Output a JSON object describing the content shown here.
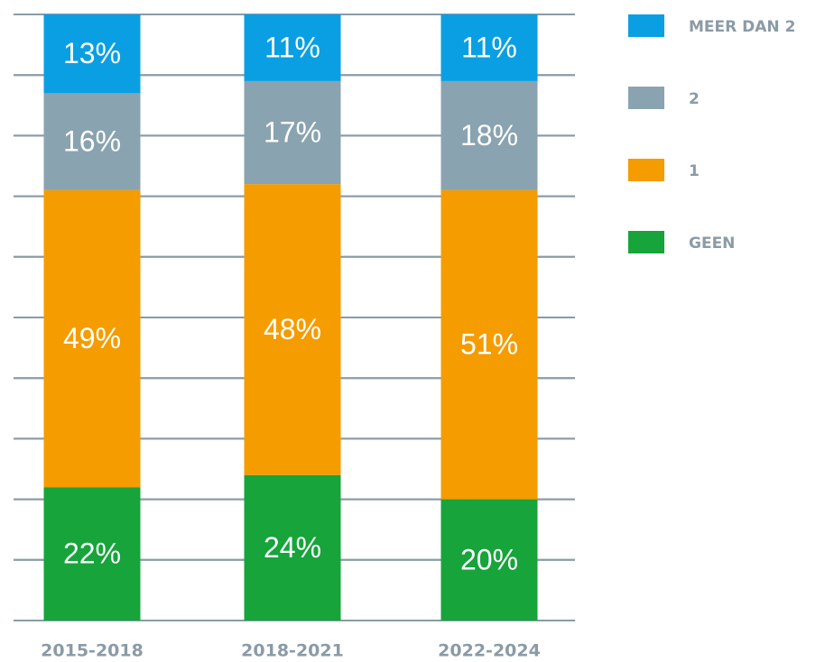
{
  "chart_data": {
    "type": "stacked_bar",
    "categories": [
      "2015-2018",
      "2018-2021",
      "2022-2024"
    ],
    "series": [
      {
        "name": "GEEN",
        "color": "#16a43b",
        "values": [
          22,
          24,
          20
        ],
        "value_labels": [
          "22%",
          "24%",
          "20%"
        ]
      },
      {
        "name": "1",
        "color": "#f59c00",
        "values": [
          49,
          48,
          51
        ],
        "value_labels": [
          "49%",
          "48%",
          "51%"
        ]
      },
      {
        "name": "2",
        "color": "#8aa3b0",
        "values": [
          16,
          17,
          18
        ],
        "value_labels": [
          "16%",
          "17%",
          "18%"
        ]
      },
      {
        "name": "MEER DAN 2",
        "color": "#0a9fe3",
        "values": [
          13,
          11,
          11
        ],
        "value_labels": [
          "13%",
          "11%",
          "11%"
        ]
      }
    ],
    "ylim": [
      0,
      100
    ],
    "yticks": [
      0,
      10,
      20,
      30,
      40,
      50,
      60,
      70,
      80,
      90,
      100
    ],
    "grid": true,
    "legend": "right"
  }
}
